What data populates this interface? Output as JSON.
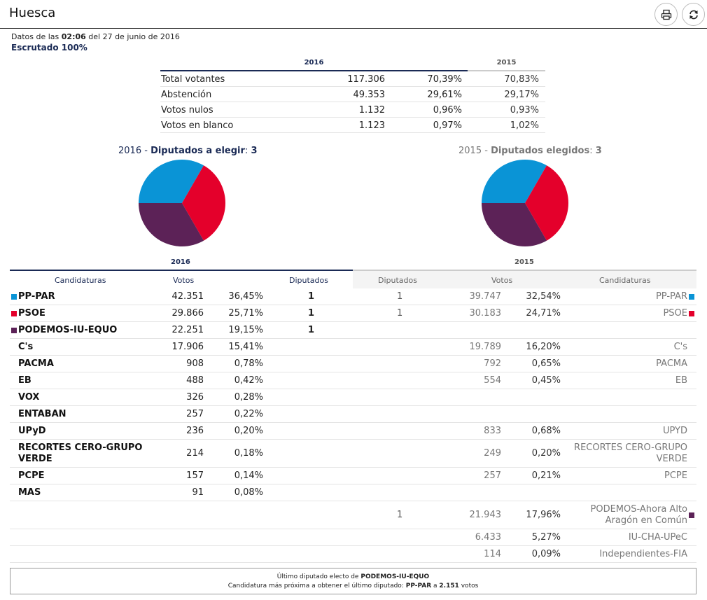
{
  "header": {
    "title": "Huesca"
  },
  "meta": {
    "prefix": "Datos de las ",
    "time": "02:06",
    "date": " del 27 de junio de 2016",
    "scrutiny": "Escrutado 100%"
  },
  "colors": {
    "pp": "#0a94d6",
    "psoe": "#e4002b",
    "podemos": "#5c2257"
  },
  "summary": {
    "year_current": "2016",
    "year_prev": "2015",
    "rows": [
      {
        "label": "Total votantes",
        "votes": "117.306",
        "pct": "70,39%",
        "pct_prev": "70,83%"
      },
      {
        "label": "Abstención",
        "votes": "49.353",
        "pct": "29,61%",
        "pct_prev": "29,17%"
      },
      {
        "label": "Votos nulos",
        "votes": "1.132",
        "pct": "0,96%",
        "pct_prev": "0,93%"
      },
      {
        "label": "Votos en blanco",
        "votes": "1.123",
        "pct": "0,97%",
        "pct_prev": "1,02%"
      }
    ]
  },
  "pies": {
    "current": {
      "year": "2016",
      "sep": " - ",
      "label": "Diputados a elegir",
      "colon": ": ",
      "value": "3",
      "seats": [
        1,
        1,
        1
      ]
    },
    "prev": {
      "year": "2015",
      "sep": " - ",
      "label": "Diputados elegidos",
      "colon": ": ",
      "value": "3",
      "seats": [
        1,
        1,
        1
      ]
    }
  },
  "results": {
    "year_current": "2016",
    "year_prev": "2015",
    "headers": [
      "Candidaturas",
      "Votos",
      "Diputados",
      "Diputados",
      "Votos",
      "Candidaturas"
    ],
    "rows": [
      {
        "name": "PP-PAR",
        "color": "#0a94d6",
        "votes": "42.351",
        "pct": "36,45%",
        "seats": "1",
        "seats15": "1",
        "votes15": "39.747",
        "pct15": "32,54%",
        "name15": "PP-PAR",
        "color15": "#0a94d6"
      },
      {
        "name": "PSOE",
        "color": "#e4002b",
        "votes": "29.866",
        "pct": "25,71%",
        "seats": "1",
        "seats15": "1",
        "votes15": "30.183",
        "pct15": "24,71%",
        "name15": "PSOE",
        "color15": "#e4002b"
      },
      {
        "name": "PODEMOS-IU-EQUO",
        "color": "#5c2257",
        "votes": "22.251",
        "pct": "19,15%",
        "seats": "1",
        "seats15": "",
        "votes15": "",
        "pct15": "",
        "name15": "",
        "color15": ""
      },
      {
        "name": "C's",
        "color": "",
        "votes": "17.906",
        "pct": "15,41%",
        "seats": "",
        "seats15": "",
        "votes15": "19.789",
        "pct15": "16,20%",
        "name15": "C's",
        "color15": ""
      },
      {
        "name": "PACMA",
        "color": "",
        "votes": "908",
        "pct": "0,78%",
        "seats": "",
        "seats15": "",
        "votes15": "792",
        "pct15": "0,65%",
        "name15": "PACMA",
        "color15": ""
      },
      {
        "name": "EB",
        "color": "",
        "votes": "488",
        "pct": "0,42%",
        "seats": "",
        "seats15": "",
        "votes15": "554",
        "pct15": "0,45%",
        "name15": "EB",
        "color15": ""
      },
      {
        "name": "VOX",
        "color": "",
        "votes": "326",
        "pct": "0,28%",
        "seats": "",
        "seats15": "",
        "votes15": "",
        "pct15": "",
        "name15": "",
        "color15": ""
      },
      {
        "name": "ENTABAN",
        "color": "",
        "votes": "257",
        "pct": "0,22%",
        "seats": "",
        "seats15": "",
        "votes15": "",
        "pct15": "",
        "name15": "",
        "color15": ""
      },
      {
        "name": "UPyD",
        "color": "",
        "votes": "236",
        "pct": "0,20%",
        "seats": "",
        "seats15": "",
        "votes15": "833",
        "pct15": "0,68%",
        "name15": "UPYD",
        "color15": ""
      },
      {
        "name": "RECORTES CERO-GRUPO VERDE",
        "color": "",
        "votes": "214",
        "pct": "0,18%",
        "seats": "",
        "seats15": "",
        "votes15": "249",
        "pct15": "0,20%",
        "name15": "RECORTES CERO-GRUPO VERDE",
        "color15": ""
      },
      {
        "name": "PCPE",
        "color": "",
        "votes": "157",
        "pct": "0,14%",
        "seats": "",
        "seats15": "",
        "votes15": "257",
        "pct15": "0,21%",
        "name15": "PCPE",
        "color15": ""
      },
      {
        "name": "MAS",
        "color": "",
        "votes": "91",
        "pct": "0,08%",
        "seats": "",
        "seats15": "",
        "votes15": "",
        "pct15": "",
        "name15": "",
        "color15": ""
      },
      {
        "name": "",
        "color": "",
        "votes": "",
        "pct": "",
        "seats": "",
        "seats15": "1",
        "votes15": "21.943",
        "pct15": "17,96%",
        "name15": "PODEMOS-Ahora Alto Aragón en Común",
        "color15": "#5c2257"
      },
      {
        "name": "",
        "color": "",
        "votes": "",
        "pct": "",
        "seats": "",
        "seats15": "",
        "votes15": "6.433",
        "pct15": "5,27%",
        "name15": "IU-CHA-UPeC",
        "color15": ""
      },
      {
        "name": "",
        "color": "",
        "votes": "",
        "pct": "",
        "seats": "",
        "seats15": "",
        "votes15": "114",
        "pct15": "0,09%",
        "name15": "Independientes-FIA",
        "color15": ""
      }
    ]
  },
  "footer": {
    "line1_prefix": "Último diputado electo de ",
    "line1_party": "PODEMOS-IU-EQUO",
    "line2_prefix": "Candidatura más próxima a obtener el último diputado: ",
    "line2_party": "PP-PAR",
    "line2_mid": " a ",
    "line2_votes": "2.151",
    "line2_suffix": " votos"
  }
}
